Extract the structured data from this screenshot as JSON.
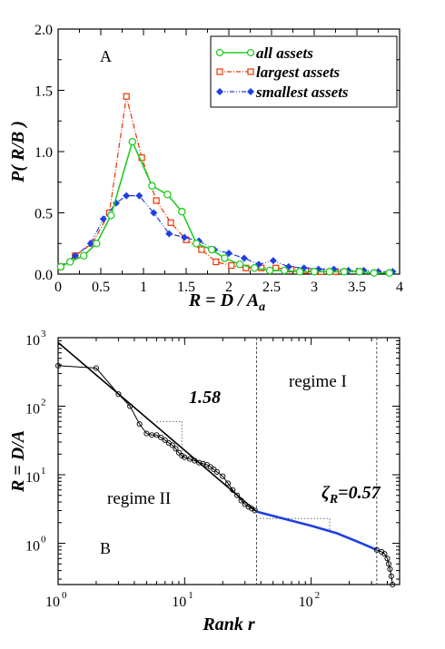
{
  "chart_data": [
    {
      "type": "line",
      "panel_label": "A",
      "xlabel": {
        "main": "R = D / A",
        "sub": "a"
      },
      "ylabel": "P( R/B )",
      "xlim": [
        0,
        4
      ],
      "ylim": [
        0,
        2
      ],
      "xticks": [
        0,
        0.5,
        1,
        1.5,
        2,
        2.5,
        3,
        3.5,
        4
      ],
      "xtick_labels": [
        "0",
        "0.5",
        "1",
        "1.5",
        "2",
        "2.5",
        "3",
        "3.5",
        "4"
      ],
      "yticks": [
        0,
        0.5,
        1,
        1.5,
        2
      ],
      "ytick_labels": [
        "0.0",
        "0.5",
        "1.0",
        "1.5",
        "2.0"
      ],
      "legend_position": "top-right",
      "series": [
        {
          "name": "all assets",
          "color": "#22cc22",
          "marker": "open-circle",
          "line": "solid",
          "x": [
            0.03,
            0.14,
            0.3,
            0.45,
            0.62,
            0.87,
            1.1,
            1.28,
            1.45,
            1.62,
            1.8,
            1.95,
            2.13,
            2.3,
            2.48,
            2.65,
            2.83,
            3.0,
            3.18,
            3.35,
            3.53,
            3.7,
            3.88
          ],
          "y": [
            0.06,
            0.1,
            0.15,
            0.25,
            0.48,
            1.08,
            0.72,
            0.65,
            0.51,
            0.25,
            0.2,
            0.13,
            0.08,
            0.05,
            0.03,
            0.03,
            0.02,
            0.02,
            0.02,
            0.02,
            0.02,
            0.01,
            0.01
          ]
        },
        {
          "name": "largest assets",
          "color": "#ee3300",
          "marker": "open-square",
          "line": "dash-dot",
          "x": [
            0.03,
            0.2,
            0.4,
            0.6,
            0.8,
            0.98,
            1.15,
            1.32,
            1.5,
            1.68,
            1.85,
            2.03,
            2.2,
            2.38,
            2.55,
            2.73,
            2.9,
            3.08,
            3.25
          ],
          "y": [
            0.06,
            0.15,
            0.25,
            0.5,
            1.45,
            0.95,
            0.6,
            0.42,
            0.28,
            0.2,
            0.1,
            0.07,
            0.05,
            0.05,
            0.05,
            0.04,
            0.03,
            0.02,
            0.02
          ]
        },
        {
          "name": "smallest assets",
          "color": "#1f3fe0",
          "marker": "filled-diamond",
          "line": "dash-dot-dot",
          "x": [
            0.03,
            0.2,
            0.38,
            0.53,
            0.68,
            0.8,
            0.95,
            1.12,
            1.3,
            1.48,
            1.65,
            1.83,
            2.0,
            2.18,
            2.35,
            2.52,
            2.7,
            2.88,
            3.05,
            3.23,
            3.4,
            3.58,
            3.75,
            3.92
          ],
          "y": [
            0.06,
            0.15,
            0.25,
            0.45,
            0.58,
            0.64,
            0.64,
            0.5,
            0.33,
            0.3,
            0.27,
            0.2,
            0.17,
            0.13,
            0.08,
            0.11,
            0.06,
            0.05,
            0.04,
            0.04,
            0.03,
            0.03,
            0.02,
            0.02
          ]
        }
      ]
    },
    {
      "type": "line",
      "panel_label": "B",
      "xlabel": "Rank r",
      "ylabel": "R = D/A",
      "xscale": "log",
      "yscale": "log",
      "xlim": [
        1,
        500
      ],
      "ylim": [
        0.25,
        1000
      ],
      "xticks": [
        1,
        10,
        100
      ],
      "yticks": [
        1,
        10,
        100,
        1000
      ],
      "tick_labels": {
        "base": "10",
        "exponents_x": [
          "0",
          "1",
          "2"
        ],
        "exponents_y": [
          "0",
          "1",
          "2",
          "3"
        ]
      },
      "annotations": {
        "slope_1": "1.58",
        "zeta_symbol": "ζ",
        "zeta_sub": "R",
        "zeta_value": "=0.57",
        "regime_1": "regime I",
        "regime_2": "regime II"
      },
      "vertical_lines_x": [
        37,
        330
      ],
      "series": [
        {
          "name": "",
          "color": "#000000",
          "marker": "open-circle",
          "x": [
            1,
            2,
            3,
            3.7,
            4.4,
            5,
            5.5,
            6,
            6.5,
            7,
            7.5,
            8,
            8.5,
            9,
            9.5,
            10,
            11,
            12,
            13,
            14,
            15,
            16,
            17,
            18,
            20,
            22,
            24,
            26,
            28,
            30,
            32,
            34,
            36
          ],
          "y": [
            390,
            360,
            150,
            100,
            55,
            40,
            38,
            38,
            35,
            32,
            29,
            27,
            24,
            21,
            19,
            18,
            17,
            16,
            15,
            14.5,
            14,
            13,
            12,
            11,
            9.5,
            7.5,
            6.0,
            5.0,
            4.2,
            3.7,
            3.4,
            3.2,
            3.0
          ]
        },
        {
          "name": "",
          "color": "#1f3fe0",
          "marker": "none",
          "x": [
            37,
            60,
            100,
            160,
            250,
            330
          ],
          "y": [
            2.9,
            2.3,
            1.8,
            1.4,
            1.0,
            0.8
          ]
        },
        {
          "name": "",
          "color": "#000000",
          "marker": "open-circle",
          "x": [
            330,
            360,
            380,
            400,
            410,
            420,
            430,
            440
          ],
          "y": [
            0.8,
            0.75,
            0.7,
            0.6,
            0.5,
            0.42,
            0.33,
            0.25
          ]
        },
        {
          "name": "power-law fit",
          "color": "#000000",
          "marker": "none",
          "x": [
            1,
            37
          ],
          "y": [
            850,
            2.9
          ]
        }
      ],
      "guide_segments": [
        {
          "x": [
            6,
            9.5
          ],
          "y": [
            60,
            60
          ]
        },
        {
          "x": [
            9.5,
            9.5
          ],
          "y": [
            60,
            18
          ]
        },
        {
          "x": [
            37,
            140
          ],
          "y": [
            2.3,
            2.3
          ]
        },
        {
          "x": [
            140,
            140
          ],
          "y": [
            2.3,
            1.5
          ]
        }
      ]
    }
  ]
}
